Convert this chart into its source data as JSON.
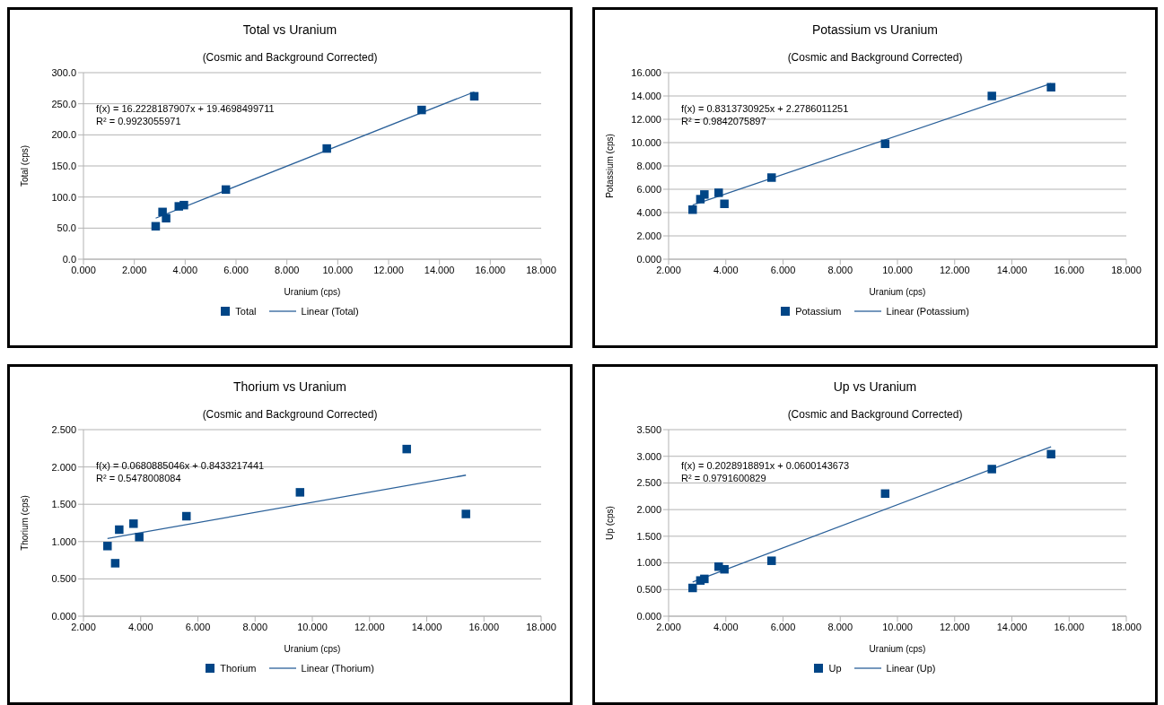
{
  "chart_data": [
    {
      "type": "scatter",
      "title": "Total vs Uranium",
      "subtitle": "(Cosmic and Background Corrected)",
      "xlabel": "Uranium (cps)",
      "ylabel": "Total (cps)",
      "annotations": [
        "f(x) = 16.2228187907x + 19.4698499711",
        "R² = 0.9923055971"
      ],
      "xlim": [
        0,
        18
      ],
      "xticks": [
        {
          "value": 0,
          "label": "0.000"
        },
        {
          "value": 2,
          "label": "2.000"
        },
        {
          "value": 4,
          "label": "4.000"
        },
        {
          "value": 6,
          "label": "6.000"
        },
        {
          "value": 8,
          "label": "8.000"
        },
        {
          "value": 10,
          "label": "10.000"
        },
        {
          "value": 12,
          "label": "12.000"
        },
        {
          "value": 14,
          "label": "14.000"
        },
        {
          "value": 16,
          "label": "16.000"
        },
        {
          "value": 18,
          "label": "18.000"
        }
      ],
      "ylim": [
        0,
        300
      ],
      "yticks": [
        {
          "value": 0,
          "label": "0.0"
        },
        {
          "value": 50,
          "label": "50.0"
        },
        {
          "value": 100,
          "label": "100.0"
        },
        {
          "value": 150,
          "label": "150.0"
        },
        {
          "value": 200,
          "label": "200.0"
        },
        {
          "value": 250,
          "label": "250.0"
        },
        {
          "value": 300,
          "label": "300.0"
        }
      ],
      "grid": "y",
      "legend": "bottom",
      "marker": "square",
      "line_style": "solid",
      "series": [
        {
          "name": "Total",
          "color": "#004586",
          "x": [
            2.84,
            3.11,
            3.25,
            3.75,
            3.95,
            5.6,
            9.57,
            13.3,
            15.37
          ],
          "values": [
            53,
            76,
            66,
            85,
            87,
            112,
            178,
            240,
            262
          ]
        },
        {
          "name": "Linear (Total)",
          "type": "line",
          "marker": "none",
          "color": "#2a6099",
          "x": [
            2.84,
            15.37
          ],
          "values": [
            66,
            269
          ]
        }
      ]
    },
    {
      "type": "scatter",
      "title": "Potassium vs Uranium",
      "subtitle": "(Cosmic and Background Corrected)",
      "xlabel": "Uranium (cps)",
      "ylabel": "Potassium (cps)",
      "annotations": [
        "f(x) = 0.8313730925x + 2.2786011251",
        "R² = 0.9842075897"
      ],
      "xlim": [
        2,
        18
      ],
      "xticks": [
        {
          "value": 2,
          "label": "2.000"
        },
        {
          "value": 4,
          "label": "4.000"
        },
        {
          "value": 6,
          "label": "6.000"
        },
        {
          "value": 8,
          "label": "8.000"
        },
        {
          "value": 10,
          "label": "10.000"
        },
        {
          "value": 12,
          "label": "12.000"
        },
        {
          "value": 14,
          "label": "14.000"
        },
        {
          "value": 16,
          "label": "16.000"
        },
        {
          "value": 18,
          "label": "18.000"
        }
      ],
      "ylim": [
        0,
        16
      ],
      "yticks": [
        {
          "value": 0,
          "label": "0.000"
        },
        {
          "value": 2,
          "label": "2.000"
        },
        {
          "value": 4,
          "label": "4.000"
        },
        {
          "value": 6,
          "label": "6.000"
        },
        {
          "value": 8,
          "label": "8.000"
        },
        {
          "value": 10,
          "label": "10.000"
        },
        {
          "value": 12,
          "label": "12.000"
        },
        {
          "value": 14,
          "label": "14.000"
        },
        {
          "value": 16,
          "label": "16.000"
        }
      ],
      "grid": "y",
      "legend": "bottom",
      "marker": "square",
      "line_style": "solid",
      "series": [
        {
          "name": "Potassium",
          "color": "#004586",
          "x": [
            2.84,
            3.11,
            3.25,
            3.75,
            3.95,
            5.6,
            9.57,
            13.3,
            15.37
          ],
          "values": [
            4.25,
            5.15,
            5.55,
            5.7,
            4.75,
            7.0,
            9.9,
            14.0,
            14.75
          ]
        },
        {
          "name": "Linear (Potassium)",
          "type": "line",
          "marker": "none",
          "color": "#2a6099",
          "x": [
            2.84,
            15.37
          ],
          "values": [
            4.64,
            15.06
          ]
        }
      ]
    },
    {
      "type": "scatter",
      "title": "Thorium vs Uranium",
      "subtitle": "(Cosmic and Background Corrected)",
      "xlabel": "Uranium (cps)",
      "ylabel": "Thorium (cps)",
      "annotations": [
        "f(x) = 0.0680885046x + 0.8433217441",
        "R² = 0.5478008084"
      ],
      "xlim": [
        2,
        18
      ],
      "xticks": [
        {
          "value": 2,
          "label": "2.000"
        },
        {
          "value": 4,
          "label": "4.000"
        },
        {
          "value": 6,
          "label": "6.000"
        },
        {
          "value": 8,
          "label": "8.000"
        },
        {
          "value": 10,
          "label": "10.000"
        },
        {
          "value": 12,
          "label": "12.000"
        },
        {
          "value": 14,
          "label": "14.000"
        },
        {
          "value": 16,
          "label": "16.000"
        },
        {
          "value": 18,
          "label": "18.000"
        }
      ],
      "ylim": [
        0,
        2.5
      ],
      "yticks": [
        {
          "value": 0,
          "label": "0.000"
        },
        {
          "value": 0.5,
          "label": "0.500"
        },
        {
          "value": 1,
          "label": "1.000"
        },
        {
          "value": 1.5,
          "label": "1.500"
        },
        {
          "value": 2,
          "label": "2.000"
        },
        {
          "value": 2.5,
          "label": "2.500"
        }
      ],
      "grid": "y",
      "legend": "bottom",
      "marker": "square",
      "line_style": "solid",
      "series": [
        {
          "name": "Thorium",
          "color": "#004586",
          "x": [
            2.84,
            3.11,
            3.25,
            3.75,
            3.95,
            5.6,
            9.57,
            13.3,
            15.37
          ],
          "values": [
            0.94,
            0.71,
            1.16,
            1.24,
            1.06,
            1.34,
            1.66,
            2.24,
            1.37
          ]
        },
        {
          "name": "Linear (Thorium)",
          "type": "line",
          "marker": "none",
          "color": "#2a6099",
          "x": [
            2.84,
            15.37
          ],
          "values": [
            1.04,
            1.89
          ]
        }
      ]
    },
    {
      "type": "scatter",
      "title": "Up vs Uranium",
      "subtitle": "(Cosmic and Background Corrected)",
      "xlabel": "Uranium (cps)",
      "ylabel": "Up (cps)",
      "annotations": [
        "f(x) = 0.2028918891x + 0.0600143673",
        "R² = 0.9791600829"
      ],
      "xlim": [
        2,
        18
      ],
      "xticks": [
        {
          "value": 2,
          "label": "2.000"
        },
        {
          "value": 4,
          "label": "4.000"
        },
        {
          "value": 6,
          "label": "6.000"
        },
        {
          "value": 8,
          "label": "8.000"
        },
        {
          "value": 10,
          "label": "10.000"
        },
        {
          "value": 12,
          "label": "12.000"
        },
        {
          "value": 14,
          "label": "14.000"
        },
        {
          "value": 16,
          "label": "16.000"
        },
        {
          "value": 18,
          "label": "18.000"
        }
      ],
      "ylim": [
        0,
        3.5
      ],
      "yticks": [
        {
          "value": 0,
          "label": "0.000"
        },
        {
          "value": 0.5,
          "label": "0.500"
        },
        {
          "value": 1,
          "label": "1.000"
        },
        {
          "value": 1.5,
          "label": "1.500"
        },
        {
          "value": 2,
          "label": "2.000"
        },
        {
          "value": 2.5,
          "label": "2.500"
        },
        {
          "value": 3,
          "label": "3.000"
        },
        {
          "value": 3.5,
          "label": "3.500"
        }
      ],
      "grid": "y",
      "legend": "bottom",
      "marker": "square",
      "line_style": "solid",
      "series": [
        {
          "name": "Up",
          "color": "#004586",
          "x": [
            2.84,
            3.11,
            3.25,
            3.75,
            3.95,
            5.6,
            9.57,
            13.3,
            15.37
          ],
          "values": [
            0.53,
            0.67,
            0.7,
            0.93,
            0.88,
            1.04,
            2.3,
            2.76,
            3.04
          ]
        },
        {
          "name": "Linear (Up)",
          "type": "line",
          "marker": "none",
          "color": "#2a6099",
          "x": [
            2.84,
            15.37
          ],
          "values": [
            0.64,
            3.18
          ]
        }
      ]
    }
  ]
}
